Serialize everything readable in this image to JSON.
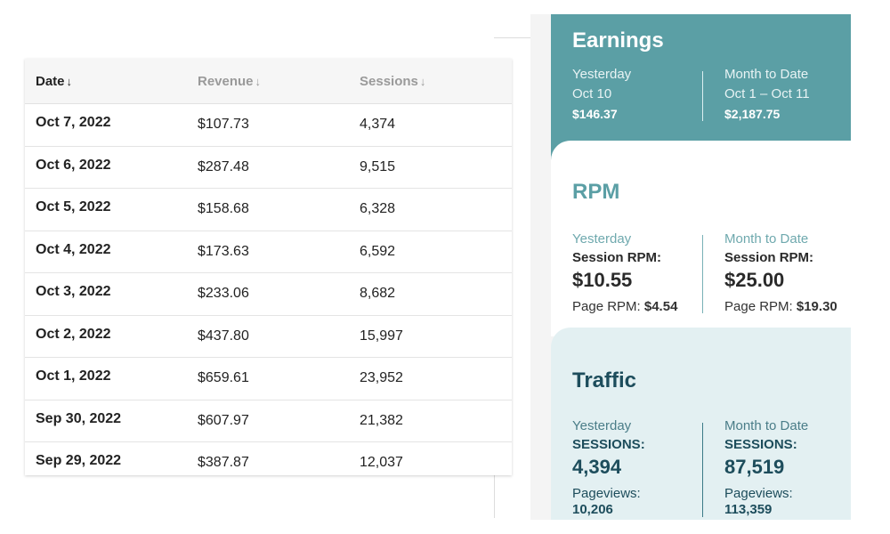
{
  "table": {
    "headers": {
      "date": "Date",
      "revenue": "Revenue",
      "sessions": "Sessions",
      "sort_arrow": "↓"
    },
    "rows": [
      {
        "date": "Oct 7, 2022",
        "revenue": "$107.73",
        "sessions": "4,374"
      },
      {
        "date": "Oct 6, 2022",
        "revenue": "$287.48",
        "sessions": "9,515"
      },
      {
        "date": "Oct 5, 2022",
        "revenue": "$158.68",
        "sessions": "6,328"
      },
      {
        "date": "Oct 4, 2022",
        "revenue": "$173.63",
        "sessions": "6,592"
      },
      {
        "date": "Oct 3, 2022",
        "revenue": "$233.06",
        "sessions": "8,682"
      },
      {
        "date": "Oct 2, 2022",
        "revenue": "$437.80",
        "sessions": "15,997"
      },
      {
        "date": "Oct 1, 2022",
        "revenue": "$659.61",
        "sessions": "23,952"
      },
      {
        "date": "Sep 30, 2022",
        "revenue": "$607.97",
        "sessions": "21,382"
      },
      {
        "date": "Sep 29, 2022",
        "revenue": "$387.87",
        "sessions": "12,037"
      }
    ]
  },
  "earnings": {
    "title": "Earnings",
    "yesterday": {
      "label": "Yesterday",
      "period": "Oct 10",
      "value": "$146.37"
    },
    "month_to_date": {
      "label": "Month to Date",
      "period": "Oct 1 – Oct 11",
      "value": "$2,187.75"
    }
  },
  "rpm": {
    "title": "RPM",
    "yesterday": {
      "label": "Yesterday",
      "session_rpm_label": "Session RPM:",
      "session_rpm_value": "$10.55",
      "page_rpm_label": "Page RPM:",
      "page_rpm_value": "$4.54"
    },
    "month_to_date": {
      "label": "Month to Date",
      "session_rpm_label": "Session RPM:",
      "session_rpm_value": "$25.00",
      "page_rpm_label": "Page RPM:",
      "page_rpm_value": "$19.30"
    }
  },
  "traffic": {
    "title": "Traffic",
    "yesterday": {
      "label": "Yesterday",
      "sessions_label": "SESSIONS:",
      "sessions_value": "4,394",
      "pageviews_label": "Pageviews:",
      "pageviews_value": "10,206"
    },
    "month_to_date": {
      "label": "Month to Date",
      "sessions_label": "SESSIONS:",
      "sessions_value": "87,519",
      "pageviews_label": "Pageviews:",
      "pageviews_value": "113,359"
    }
  },
  "colors": {
    "earnings_bg": "#5b9fa5",
    "traffic_bg": "#e3f0f2",
    "rpm_accent": "#5b9fa5",
    "traffic_text": "#1d4d5c"
  }
}
